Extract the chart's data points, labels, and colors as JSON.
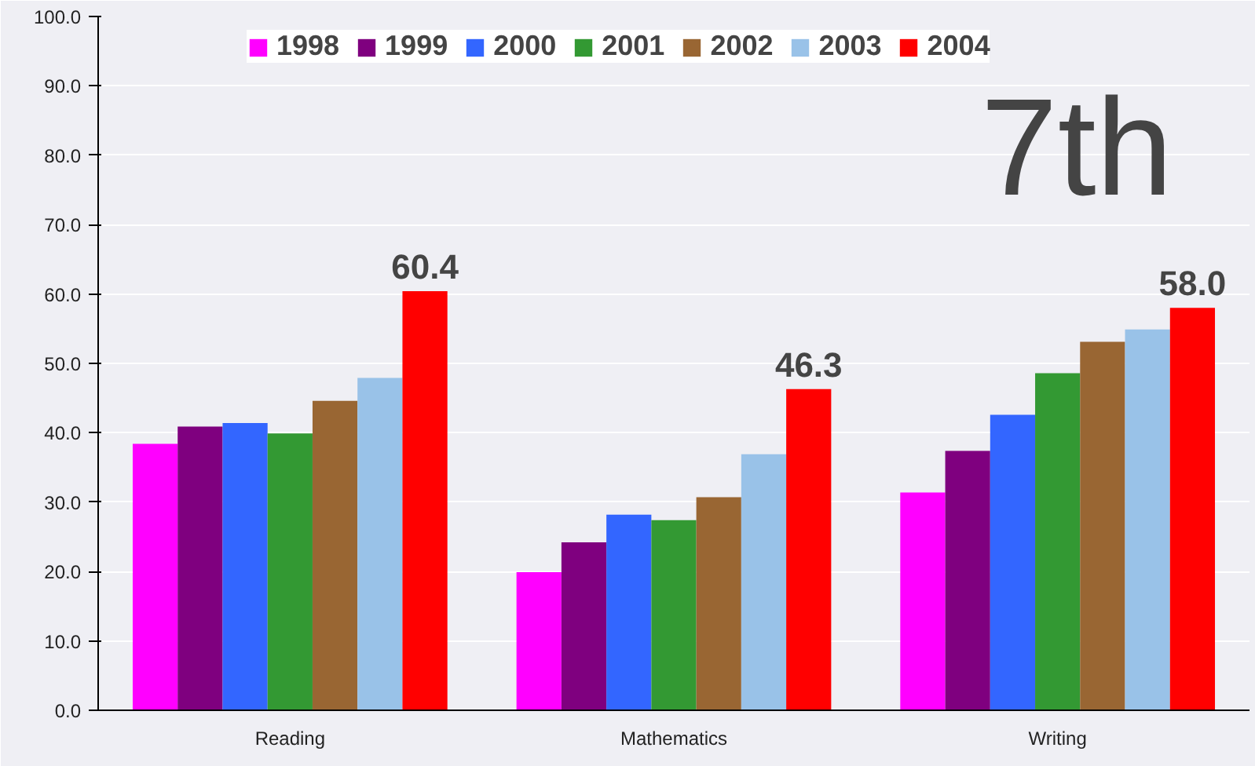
{
  "chart_data": {
    "type": "bar",
    "categories": [
      "Reading",
      "Mathematics",
      "Writing"
    ],
    "series": [
      {
        "name": "1998",
        "color": "#ff00ff",
        "values": [
          38.4,
          19.9,
          31.4
        ]
      },
      {
        "name": "1999",
        "color": "#7f007f",
        "values": [
          40.9,
          24.2,
          37.4
        ]
      },
      {
        "name": "2000",
        "color": "#3366ff",
        "values": [
          41.4,
          28.2,
          42.6
        ]
      },
      {
        "name": "2001",
        "color": "#339933",
        "values": [
          39.9,
          27.4,
          48.6
        ]
      },
      {
        "name": "2002",
        "color": "#996633",
        "values": [
          44.6,
          30.7,
          53.1
        ]
      },
      {
        "name": "2003",
        "color": "#99c2e8",
        "values": [
          47.9,
          36.9,
          54.9
        ]
      },
      {
        "name": "2004",
        "color": "#ff0000",
        "values": [
          60.4,
          46.3,
          58.0
        ],
        "value_labels": [
          "60.4",
          "46.3",
          "58.0"
        ]
      }
    ],
    "ylim": [
      0,
      100
    ],
    "yticks": [
      {
        "value": 0,
        "label": "0.0"
      },
      {
        "value": 10,
        "label": "10.0"
      },
      {
        "value": 20,
        "label": "20.0"
      },
      {
        "value": 30,
        "label": "30.0"
      },
      {
        "value": 40,
        "label": "40.0"
      },
      {
        "value": 50,
        "label": "50.0"
      },
      {
        "value": 60,
        "label": "60.0"
      },
      {
        "value": 70,
        "label": "70.0"
      },
      {
        "value": 80,
        "label": "80.0"
      },
      {
        "value": 90,
        "label": "90.0"
      },
      {
        "value": 100,
        "label": "100.0"
      }
    ],
    "grid": "y",
    "legend": "top",
    "annotations": [
      "7th"
    ]
  }
}
